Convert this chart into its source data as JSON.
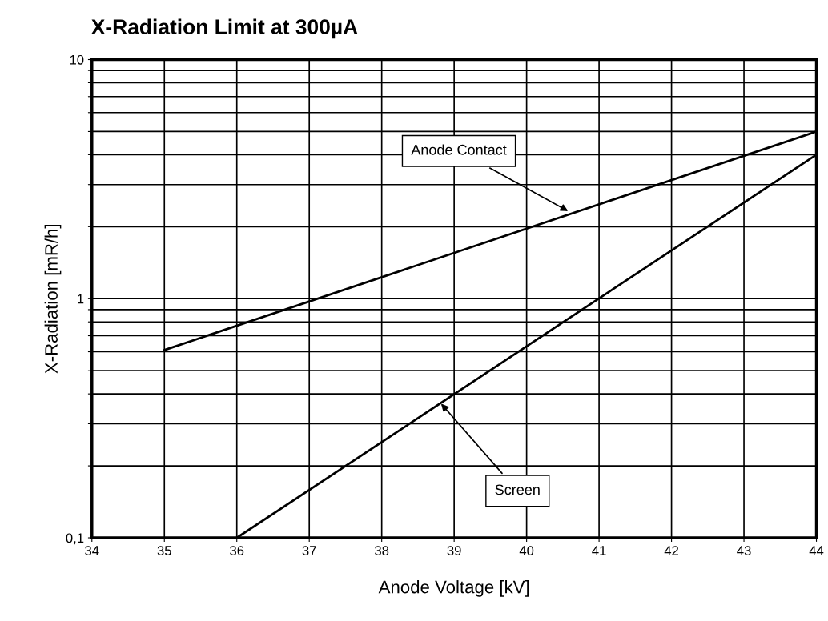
{
  "chart_data": {
    "type": "line",
    "title": "X-Radiation Limit at 300µA",
    "xlabel": "Anode Voltage [kV]",
    "ylabel": "X-Radiation [mR/h]",
    "series": [
      {
        "color": "#000000",
        "x": [
          35,
          44
        ],
        "values": [
          0.61,
          5.0
        ]
      },
      {
        "color": "#000000",
        "x": [
          36,
          44
        ],
        "values": [
          0.1,
          4.0
        ]
      }
    ],
    "annotations": [
      {
        "text": "Anode Contact",
        "x": 40.6,
        "y": 2.3
      },
      {
        "text": "Screen",
        "x": 38.8,
        "y": 0.37
      }
    ],
    "log": "y",
    "xlim": [
      34,
      44
    ],
    "ylim": [
      0.1,
      10
    ],
    "xticks": [
      34,
      35,
      36,
      37,
      38,
      39,
      40,
      41,
      42,
      43,
      44
    ],
    "yticks": [
      {
        "value": 0.1,
        "label": "0,1"
      },
      {
        "value": 0.2,
        "label": null
      },
      {
        "value": 0.3,
        "label": null
      },
      {
        "value": 0.4,
        "label": null
      },
      {
        "value": 0.5,
        "label": null
      },
      {
        "value": 0.6,
        "label": null
      },
      {
        "value": 0.7,
        "label": null
      },
      {
        "value": 0.8,
        "label": null
      },
      {
        "value": 0.9,
        "label": null
      },
      1,
      {
        "value": 2,
        "label": null
      },
      {
        "value": 3,
        "label": null
      },
      {
        "value": 4,
        "label": null
      },
      {
        "value": 5,
        "label": null
      },
      {
        "value": 6,
        "label": null
      },
      {
        "value": 7,
        "label": null
      },
      {
        "value": 8,
        "label": null
      },
      {
        "value": 9,
        "label": null
      },
      10
    ],
    "grid": true,
    "legend": false,
    "marker": "none",
    "line_style": "solid"
  }
}
